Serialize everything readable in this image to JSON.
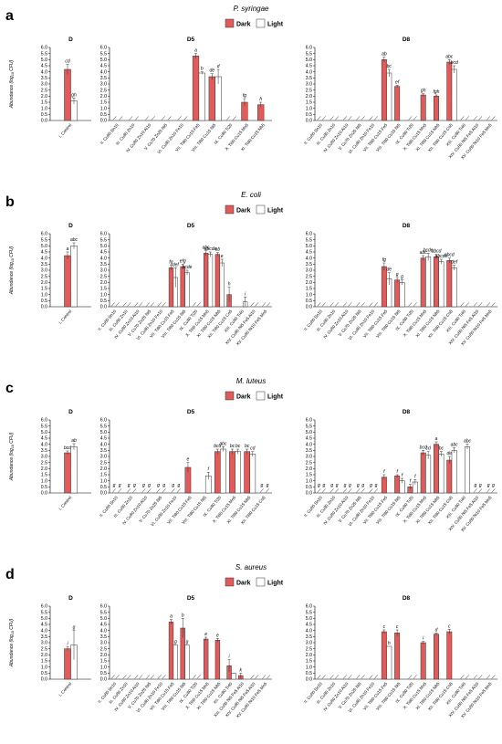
{
  "figure": {
    "legend": {
      "dark": "Dark",
      "light": "Light"
    },
    "colors": {
      "dark": "#e25b5b",
      "light": "#ffffff",
      "stroke": "#333333"
    },
    "ylabel_main": "Abundance (log",
    "ylabel_sub": "10",
    "ylabel_tail": " CFU)",
    "ylim": [
      0,
      6
    ],
    "yticks": [
      "0.0",
      "0.5",
      "1.0",
      "1.5",
      "2.0",
      "2.5",
      "3.0",
      "3.5",
      "4.0",
      "4.5",
      "5.0",
      "5.5",
      "6.0"
    ]
  },
  "chart_data": [
    {
      "type": "bar",
      "panel_letter": "a",
      "organism": "P. syringae",
      "groups": [
        {
          "title": "D",
          "categories": [
            "I. Control"
          ],
          "dark": [
            4.2
          ],
          "light": [
            1.6
          ],
          "dark_err": [
            0.4
          ],
          "light_err": [
            0.25
          ],
          "dark_lbl": [
            "cd"
          ],
          "light_lbl": [
            "gh"
          ]
        },
        {
          "title": "D5",
          "categories": [
            "II. Cu80 Sn10",
            "III. Cu80 Zn10",
            "IV. Cu80 Zn10 Al10",
            "V. Cu70 Zn25 Ni5",
            "VI. Cu80 Zn10 Fe10",
            "VII. Ti80 Cu15 Fe5",
            "VIII. Ti80 Cu15 Ni5",
            "IX. Cu80 Ti20",
            "X. Ti80 Cu15 Mn5",
            "XI. Ti80 Cu15 Nb5"
          ],
          "dark": [
            null,
            null,
            null,
            null,
            null,
            5.3,
            3.6,
            null,
            1.5,
            1.3
          ],
          "light": [
            null,
            null,
            null,
            null,
            null,
            3.9,
            3.6,
            null,
            null,
            null
          ],
          "dark_err": [
            0,
            0,
            0,
            0,
            0,
            0.2,
            0.25,
            0,
            0.3,
            0.2
          ],
          "light_err": [
            0,
            0,
            0,
            0,
            0,
            0.1,
            0.6,
            0,
            0,
            0
          ],
          "dark_lbl": [
            "",
            "",
            "",
            "",
            "",
            "a",
            "de",
            "",
            "fg",
            "h"
          ],
          "light_lbl": [
            "",
            "",
            "",
            "",
            "",
            "b",
            "d",
            "",
            "",
            ""
          ]
        },
        {
          "title": "D8",
          "categories": [
            "II. Cu80 Sn10",
            "III. Cu80 Zn10",
            "IV. Cu80 Zn10 Al10",
            "V. Cu70 Zn25 Ni5",
            "VI. Cu80 Zn10 Fe10",
            "VII. Ti80 Cu15 Fe5",
            "VIII. Ti80 Cu15 Ni5",
            "IX. Cu80 Ti20",
            "X. Ti80 Cu15 Mn5",
            "XI. Ti80 Cu15 Nb5",
            "XII. Ti80 Cu15 Co5",
            "XIII. Cu80 Ti40",
            "XIV. Cu80 Ni5 Fe5 Al10",
            "XV. Cu80 Ni10 Fe5 Mn5"
          ],
          "dark": [
            null,
            null,
            null,
            null,
            null,
            5.0,
            2.8,
            null,
            2.1,
            2.0,
            4.8,
            null,
            null,
            null
          ],
          "light": [
            null,
            null,
            null,
            null,
            null,
            3.9,
            null,
            null,
            null,
            null,
            4.2,
            null,
            null,
            null
          ],
          "dark_err": [
            0,
            0,
            0,
            0,
            0,
            0.2,
            0.1,
            0,
            0.1,
            0.1,
            0.2,
            0,
            0,
            0
          ],
          "light_err": [
            0,
            0,
            0,
            0,
            0,
            0.3,
            0,
            0,
            0,
            0,
            0.3,
            0,
            0,
            0
          ],
          "dark_lbl": [
            "",
            "",
            "",
            "",
            "",
            "ab",
            "ef",
            "",
            "gh",
            "fgh",
            "abc",
            "",
            "",
            ""
          ],
          "light_lbl": [
            "",
            "",
            "",
            "",
            "",
            "bc",
            "",
            "",
            "",
            "",
            "bcd",
            "",
            "",
            ""
          ]
        }
      ]
    },
    {
      "type": "bar",
      "panel_letter": "b",
      "organism": "E. coli",
      "groups": [
        {
          "title": "D",
          "categories": [
            "I. Control"
          ],
          "dark": [
            4.2
          ],
          "light": [
            5.0
          ],
          "dark_err": [
            0.3
          ],
          "light_err": [
            0.25
          ],
          "dark_lbl": [
            "a"
          ],
          "light_lbl": [
            "abc"
          ]
        },
        {
          "title": "D5",
          "categories": [
            "II. Cu80 Sn10",
            "III. Cu80 Zn10",
            "IV. Cu80 Zn10 Al10",
            "V. Cu70 Zn25 Ni5",
            "VI. Cu80 Zn10 Fe10",
            "VII. Ti80 Cu15 Fe5",
            "VIII. Ti80 Cu15 Ni5",
            "IX. Cu80 Ti20",
            "X. Ti80 Cu15 Mn5",
            "XI. Ti80 Cu15 Nb5",
            "XII. Ti80 Cu15 Co5",
            "XIII. Cu80 Ti40",
            "XIV. Cu80 Ni5 Fe5 Al10",
            "XV. Cu80 Ni10 Fe5 Mn5"
          ],
          "dark": [
            null,
            null,
            null,
            null,
            null,
            3.2,
            3.3,
            null,
            4.4,
            4.3,
            1.0,
            null,
            null,
            null
          ],
          "light": [
            null,
            null,
            null,
            null,
            null,
            2.4,
            2.8,
            null,
            4.3,
            3.6,
            null,
            0.4,
            null,
            null
          ],
          "dark_err": [
            0,
            0,
            0,
            0,
            0,
            0.2,
            0.2,
            0,
            0.2,
            0.15,
            0.6,
            0,
            0,
            0
          ],
          "light_err": [
            0,
            0,
            0,
            0,
            0,
            0.8,
            0.2,
            0,
            0.2,
            0.3,
            0,
            0.4,
            0,
            0
          ],
          "dark_lbl": [
            "",
            "",
            "",
            "",
            "",
            "fg",
            "efg",
            "",
            "abc",
            "ab",
            "h",
            "",
            "",
            ""
          ],
          "light_lbl": [
            "",
            "",
            "",
            "",
            "",
            "def",
            "bcde",
            "",
            "abcde",
            "e",
            "",
            "i",
            "",
            ""
          ]
        },
        {
          "title": "D8",
          "categories": [
            "II. Cu80 Sn10",
            "III. Cu80 Zn10",
            "IV. Cu80 Zn10 Al10",
            "V. Cu70 Zn25 Ni5",
            "VI. Cu80 Zn10 Fe10",
            "VII. Ti80 Cu15 Fe5",
            "VIII. Ti80 Cu15 Ni5",
            "IX. Cu80 Ti20",
            "X. Ti80 Cu15 Mn5",
            "XI. Ti80 Cu15 Nb5",
            "XII. Ti80 Cu15 Co5",
            "XIII. Cu80 Ti40",
            "XIV. Cu80 Ni5 Fe5 Al10",
            "XV. Cu80 Ni10 Fe5 Mn5"
          ],
          "dark": [
            null,
            null,
            null,
            null,
            null,
            3.3,
            2.2,
            null,
            4.0,
            4.1,
            3.8,
            null,
            null,
            null
          ],
          "light": [
            null,
            null,
            null,
            null,
            null,
            2.3,
            2.0,
            null,
            4.1,
            3.7,
            3.2,
            null,
            null,
            null
          ],
          "dark_err": [
            0,
            0,
            0,
            0,
            0,
            0.3,
            0.2,
            0,
            0.2,
            0.2,
            0.2,
            0,
            0,
            0
          ],
          "light_err": [
            0,
            0,
            0,
            0,
            0,
            0.5,
            0.2,
            0,
            0.3,
            0.2,
            0.2,
            0,
            0,
            0
          ],
          "dark_lbl": [
            "",
            "",
            "",
            "",
            "",
            "fg",
            "g",
            "",
            "abc",
            "abcd",
            "abcd",
            "",
            "",
            ""
          ],
          "light_lbl": [
            "",
            "",
            "",
            "",
            "",
            "de",
            "g",
            "",
            "bcde",
            "abcde",
            "def",
            "",
            "",
            ""
          ]
        }
      ]
    },
    {
      "type": "bar",
      "panel_letter": "c",
      "organism": "M. luteus",
      "groups": [
        {
          "title": "D",
          "categories": [
            "I. Control"
          ],
          "dark": [
            3.3
          ],
          "light": [
            3.8
          ],
          "dark_err": [
            0.15
          ],
          "light_err": [
            0.25
          ],
          "dark_lbl": [
            "bcd"
          ],
          "light_lbl": [
            "ab"
          ]
        },
        {
          "title": "D5",
          "categories": [
            "II. Cu80 Sn10",
            "III. Cu80 Zn10",
            "IV. Cu80 Zn10 Al10",
            "V. Cu70 Zn25 Ni5",
            "VI. Cu80 Zn10 Fe10",
            "VII. Ti80 Cu15 Fe5",
            "VIII. Ti80 Cu15 Ni5",
            "IX. Cu80 Ti20",
            "X. Ti80 Cu15 Mn5",
            "XI. Ti80 Cu15 Nb5",
            "XII. Ti80 Cu15 Co5"
          ],
          "dark": [
            null,
            null,
            null,
            null,
            null,
            2.1,
            null,
            3.4,
            3.4,
            3.4,
            null
          ],
          "light": [
            null,
            null,
            null,
            null,
            null,
            null,
            1.4,
            3.6,
            3.4,
            3.2,
            null
          ],
          "dark_err": [
            0,
            0,
            0,
            0,
            0,
            0.4,
            0,
            0.2,
            0.2,
            0.2,
            0
          ],
          "light_err": [
            0,
            0,
            0,
            0,
            0,
            0,
            0.3,
            0.2,
            0.2,
            0.2,
            0
          ],
          "dark_lbl": [
            "g",
            "g",
            "g",
            "g",
            "g",
            "e",
            "g",
            "bcd",
            "bc",
            "bc",
            "g"
          ],
          "light_lbl": [
            "g",
            "g",
            "g",
            "g",
            "g",
            "g",
            "f",
            "abc",
            "bc",
            "cd",
            "g"
          ]
        },
        {
          "title": "D8",
          "categories": [
            "II. Cu80 Sn10",
            "III. Cu80 Zn10",
            "IV. Cu80 Zn10 Al10",
            "V. Cu70 Zn25 Ni5",
            "VI. Cu80 Zn10 Fe10",
            "VII. Ti80 Cu15 Fe5",
            "VIII. Ti80 Cu15 Ni5",
            "IX. Cu80 Ti20",
            "X. Ti80 Cu15 Mn5",
            "XI. Ti80 Cu15 Nb5",
            "XII. Ti80 Cu15 Co5",
            "XIII. Cu80 Ti40",
            "XIV. Cu80 Ni5 Fe5 Al10",
            "XV. Cu80 Ni10 Fe5 Mn5"
          ],
          "dark": [
            null,
            null,
            null,
            null,
            null,
            1.3,
            1.4,
            0.5,
            3.3,
            4.0,
            2.7,
            null,
            null,
            null
          ],
          "light": [
            null,
            null,
            null,
            null,
            null,
            null,
            1.0,
            0.9,
            3.1,
            3.2,
            3.5,
            3.8,
            null,
            null
          ],
          "dark_err": [
            0,
            0,
            0,
            0,
            0,
            0.2,
            0.1,
            0.2,
            0.2,
            0.2,
            0.3,
            0,
            0,
            0
          ],
          "light_err": [
            0,
            0,
            0,
            0,
            0,
            0,
            0.2,
            0.2,
            0.3,
            0.2,
            0.2,
            0.2,
            0,
            0
          ],
          "dark_lbl": [
            "g",
            "g",
            "g",
            "g",
            "g",
            "f",
            "f",
            "f",
            "bcd",
            "a",
            "de",
            "",
            "g",
            "g"
          ],
          "light_lbl": [
            "g",
            "g",
            "g",
            "g",
            "g",
            "g",
            "f",
            "f",
            "cd",
            "bc",
            "abc",
            "abc",
            "g",
            "g"
          ]
        }
      ]
    },
    {
      "type": "bar",
      "panel_letter": "d",
      "organism": "S. aureus",
      "groups": [
        {
          "title": "D",
          "categories": [
            "I. Control"
          ],
          "dark": [
            2.5
          ],
          "light": [
            2.8
          ],
          "dark_err": [
            0.15
          ],
          "light_err": [
            1.2
          ],
          "dark_lbl": [
            "i"
          ],
          "light_lbl": [
            "g"
          ]
        },
        {
          "title": "D5",
          "categories": [
            "II. Cu80 Sn10",
            "III. Cu80 Zn10",
            "IV. Cu80 Zn10 Al10",
            "V. Cu70 Zn25 Ni5",
            "VI. Cu80 Zn10 Fe10",
            "VII. Ti80 Cu15 Fe5",
            "VIII. Ti80 Cu15 Ni5",
            "IX. Cu80 Ti20",
            "X. Ti80 Cu15 Mn5",
            "XI. Ti80 Cu15 Nb5",
            "XII. Cu80 Ti40",
            "XIII. Cu80 Ni5 Fe5 Al10",
            "XIV. Cu80 Ni5 Fe5 Al10",
            "XV. Cu80 Ni10 Fe5 Mn5"
          ],
          "dark": [
            null,
            null,
            null,
            null,
            null,
            4.7,
            4.2,
            null,
            3.3,
            3.2,
            1.1,
            0.3,
            null,
            null
          ],
          "light": [
            null,
            null,
            null,
            null,
            null,
            2.8,
            2.8,
            null,
            null,
            null,
            0.5,
            null,
            null,
            null
          ],
          "dark_err": [
            0,
            0,
            0,
            0,
            0,
            0.2,
            0.8,
            0,
            0.15,
            0.15,
            0.5,
            0.2,
            0,
            0
          ],
          "light_err": [
            0,
            0,
            0,
            0,
            0,
            0,
            0,
            0,
            0,
            0,
            0,
            0,
            0,
            0
          ],
          "dark_lbl": [
            "",
            "",
            "",
            "",
            "",
            "a",
            "b",
            "",
            "e",
            "e",
            "i",
            "k",
            "",
            ""
          ],
          "light_lbl": [
            "",
            "",
            "",
            "",
            "",
            "g",
            "g",
            "",
            "",
            "",
            "",
            "",
            "",
            ""
          ]
        },
        {
          "title": "D8",
          "categories": [
            "II. Cu80 Sn10",
            "III. Cu80 Zn10",
            "IV. Cu80 Zn10 Al10",
            "V. Cu70 Zn25 Ni5",
            "VI. Cu80 Zn10 Fe10",
            "VII. Ti80 Cu15 Fe5",
            "VIII. Ti80 Cu15 Ni5",
            "IX. Cu80 Ti20",
            "X. Ti80 Cu15 Mn5",
            "XI. Ti80 Cu15 Nb5",
            "XII. Ti80 Cu15 Co5",
            "XIII. Cu80 Ti40",
            "XIV. Cu80 Ni5 Fe5 Al10",
            "XV. Cu80 Ni10 Fe5 Mn5"
          ],
          "dark": [
            null,
            null,
            null,
            null,
            null,
            3.9,
            3.8,
            null,
            3.0,
            3.7,
            3.9,
            null,
            null,
            null
          ],
          "light": [
            null,
            null,
            null,
            null,
            null,
            2.7,
            null,
            null,
            null,
            null,
            null,
            null,
            null,
            null
          ],
          "dark_err": [
            0,
            0,
            0,
            0,
            0,
            0.15,
            0.25,
            0,
            0.1,
            0.1,
            0.2,
            0,
            0,
            0
          ],
          "light_err": [
            0,
            0,
            0,
            0,
            0,
            0,
            0,
            0,
            0,
            0,
            0,
            0,
            0,
            0
          ],
          "dark_lbl": [
            "",
            "",
            "",
            "",
            "",
            "c",
            "c",
            "",
            "i",
            "d",
            "c",
            "",
            "",
            ""
          ],
          "light_lbl": [
            "",
            "",
            "",
            "",
            "",
            "h",
            "",
            "",
            "",
            "",
            "",
            "",
            "",
            ""
          ]
        }
      ]
    }
  ]
}
